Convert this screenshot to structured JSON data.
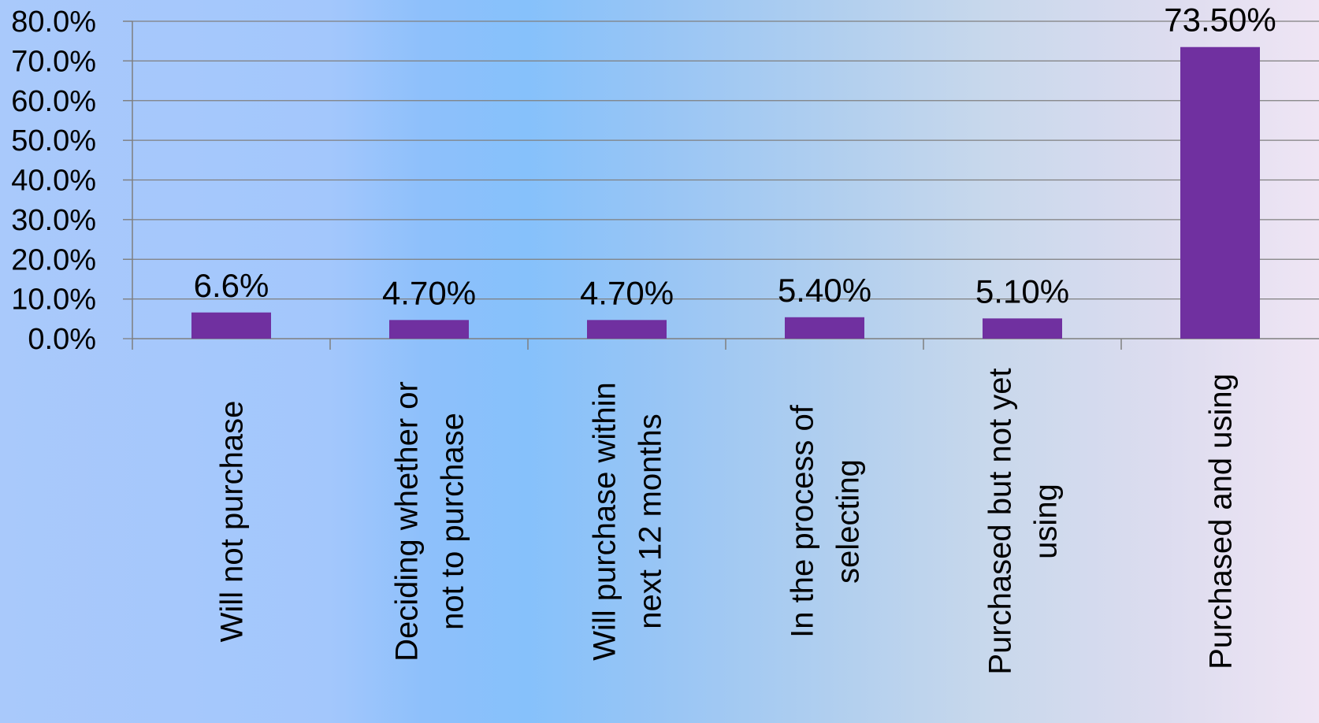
{
  "chart_data": {
    "type": "bar",
    "categories": [
      "Will not purchase",
      "Deciding whether or not to purchase",
      "Will purchase within next 12 months",
      "In the process of selecting",
      "Purchased but not yet using",
      "Purchased and using"
    ],
    "category_lines": [
      [
        "Will not purchase"
      ],
      [
        "Deciding whether or",
        "not to purchase"
      ],
      [
        "Will purchase within",
        "next 12 months"
      ],
      [
        "In the process of",
        "selecting"
      ],
      [
        "Purchased but not yet",
        "using"
      ],
      [
        "Purchased and using"
      ]
    ],
    "values": [
      6.6,
      4.7,
      4.7,
      5.4,
      5.1,
      73.5
    ],
    "data_labels": [
      "6.6%",
      "4.70%",
      "4.70%",
      "5.40%",
      "5.10%",
      "73.50%"
    ],
    "y_ticks": [
      "0.0%",
      "10.0%",
      "20.0%",
      "30.0%",
      "40.0%",
      "50.0%",
      "60.0%",
      "70.0%",
      "80.0%"
    ],
    "ylim": [
      0,
      80
    ],
    "grid": true,
    "legend": "none",
    "bar_color": "#7030a0",
    "grid_color": "#7f7f7f"
  }
}
